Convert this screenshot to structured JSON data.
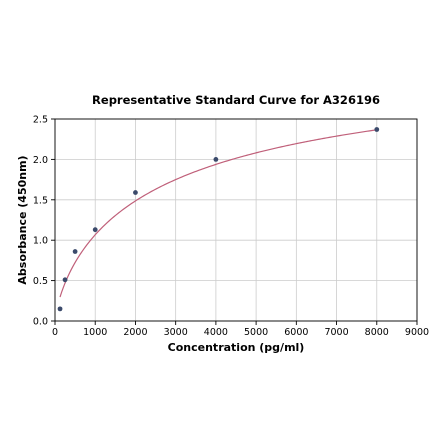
{
  "chart_data": {
    "type": "scatter",
    "title": "Representative Standard Curve for A326196",
    "xlabel": "Concentration (pg/ml)",
    "ylabel": "Absorbance (450nm)",
    "xlim": [
      0,
      9000
    ],
    "ylim": [
      0,
      2.5
    ],
    "xticks": [
      0,
      1000,
      2000,
      3000,
      4000,
      5000,
      6000,
      7000,
      8000,
      9000
    ],
    "xtick_labels": [
      "0",
      "1000",
      "2000",
      "3000",
      "4000",
      "5000",
      "6000",
      "7000",
      "8000",
      "9000"
    ],
    "yticks": [
      0.0,
      0.5,
      1.0,
      1.5,
      2.0,
      2.5
    ],
    "ytick_labels": [
      "0.0",
      "0.5",
      "1.0",
      "1.5",
      "2.0",
      "2.5"
    ],
    "grid": true,
    "series": [
      {
        "type": "scatter",
        "x": [
          125,
          250,
          500,
          1000,
          2000,
          4000,
          8000
        ],
        "y": [
          0.15,
          0.51,
          0.86,
          1.13,
          1.59,
          2.0,
          2.37
        ],
        "color": "#3b4a6b"
      },
      {
        "type": "line",
        "fit": "four-parameter-logistic",
        "color": "#c0607a"
      }
    ]
  }
}
